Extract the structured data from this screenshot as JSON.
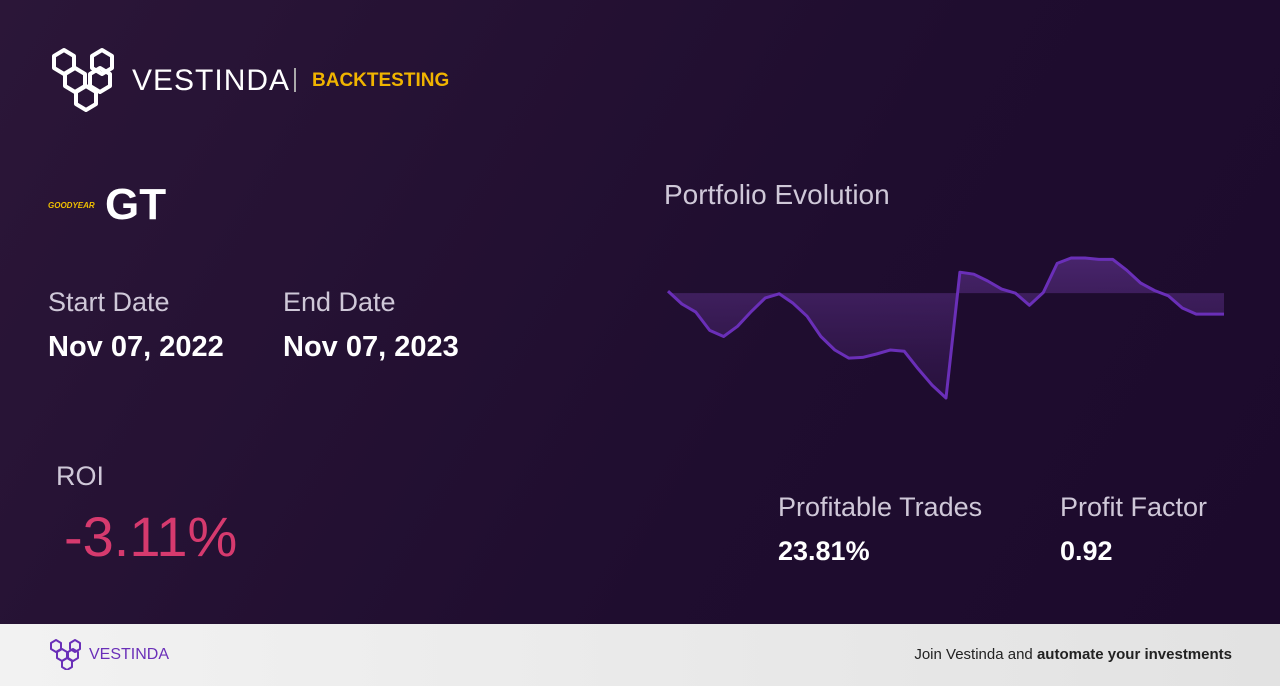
{
  "header": {
    "brand": "VESTINDA",
    "section": "BACKTESTING"
  },
  "asset": {
    "logo": "GOODYEAR",
    "ticker": "GT"
  },
  "dates": {
    "start_label": "Start Date",
    "start": "Nov 07, 2022",
    "end_label": "End Date",
    "end": "Nov 07, 2023"
  },
  "roi": {
    "label": "ROI",
    "value": "-3.11%"
  },
  "stats": {
    "profitable_trades_label": "Profitable Trades",
    "profitable_trades": "23.81%",
    "profit_factor_label": "Profit Factor",
    "profit_factor": "0.92"
  },
  "chart_data": {
    "type": "line",
    "title": "Portfolio Evolution",
    "color": "#6a2fb8",
    "values": [
      0.3,
      -1.6,
      -2.8,
      -5.5,
      -6.4,
      -4.9,
      -2.7,
      -0.7,
      -0.1,
      -1.5,
      -3.4,
      -6.4,
      -8.4,
      -9.6,
      -9.5,
      -9.0,
      -8.4,
      -8.6,
      -11.2,
      -13.6,
      -15.5,
      3.1,
      2.8,
      1.8,
      0.6,
      0,
      -1.8,
      0.1,
      4.4,
      5.2,
      5.2,
      5.0,
      5.0,
      3.4,
      1.5,
      0.4,
      -0.4,
      -2.2,
      -3.1,
      -3.1,
      -3.1
    ]
  },
  "footer": {
    "brand": "VESTINDA",
    "cta_plain": "Join Vestinda and ",
    "cta_bold": "automate your investments"
  }
}
